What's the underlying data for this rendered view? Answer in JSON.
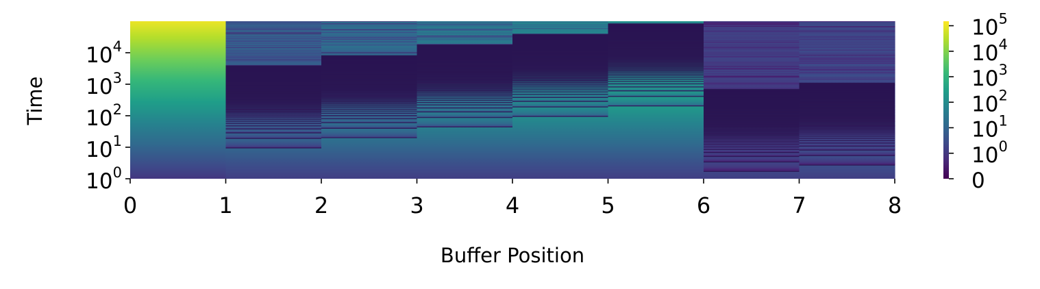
{
  "chart_data": {
    "type": "heatmap",
    "title": "",
    "xlabel": "Buffer Position",
    "ylabel": "Time",
    "x_ticks": [
      "0",
      "1",
      "2",
      "3",
      "4",
      "5",
      "6",
      "7",
      "8"
    ],
    "xlim": [
      0,
      8
    ],
    "y_scale": "log",
    "y_ticks": [
      {
        "base": "10",
        "exp": "0",
        "value": 1
      },
      {
        "base": "10",
        "exp": "1",
        "value": 10
      },
      {
        "base": "10",
        "exp": "2",
        "value": 100
      },
      {
        "base": "10",
        "exp": "3",
        "value": 1000
      },
      {
        "base": "10",
        "exp": "4",
        "value": 10000
      }
    ],
    "ylim": [
      1,
      100000
    ],
    "colormap": "viridis",
    "colorbar": {
      "scale": "symlog",
      "ticks": [
        {
          "base": "0",
          "exp": "",
          "value": 0
        },
        {
          "base": "10",
          "exp": "0",
          "value": 1
        },
        {
          "base": "10",
          "exp": "1",
          "value": 10
        },
        {
          "base": "10",
          "exp": "2",
          "value": 100
        },
        {
          "base": "10",
          "exp": "3",
          "value": 1000
        },
        {
          "base": "10",
          "exp": "4",
          "value": 10000
        },
        {
          "base": "10",
          "exp": "5",
          "value": 100000
        }
      ],
      "range": [
        0,
        150000
      ]
    },
    "columns": [
      {
        "position": 0,
        "period": 0
      },
      {
        "position": 1,
        "period": 9.5
      },
      {
        "position": 2,
        "period": 20
      },
      {
        "position": 3,
        "period": 44
      },
      {
        "position": 4,
        "period": 95
      },
      {
        "position": 5,
        "period": 205
      },
      {
        "position": 6,
        "period": 1.7
      },
      {
        "position": 7,
        "period": 2.7
      }
    ]
  }
}
